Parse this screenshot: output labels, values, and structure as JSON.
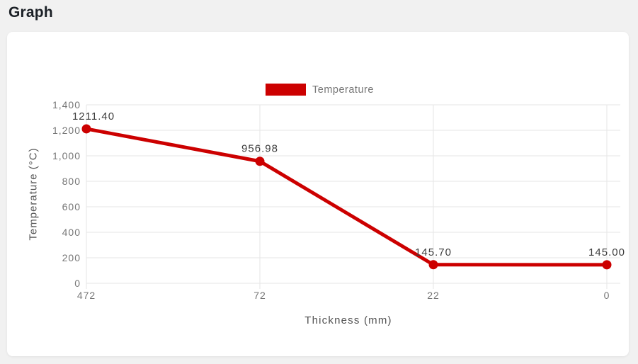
{
  "page": {
    "title": "Graph"
  },
  "legend": {
    "label": "Temperature"
  },
  "chart_data": {
    "type": "line",
    "title": "",
    "xlabel": "Thickness (mm)",
    "ylabel": "Temperature (°C)",
    "categories": [
      "472",
      "72",
      "22",
      "0"
    ],
    "x_values": [
      472,
      72,
      22,
      0
    ],
    "series": [
      {
        "name": "Temperature",
        "color": "#cc0000",
        "values": [
          1211.4,
          956.98,
          145.7,
          145.0
        ],
        "point_labels": [
          "1211.40",
          "956.98",
          "145.70",
          "145.00"
        ]
      }
    ],
    "ylim": [
      0,
      1400
    ],
    "yticks": [
      0,
      200,
      400,
      600,
      800,
      1000,
      1200,
      1400
    ],
    "ytick_labels": [
      "0",
      "200",
      "400",
      "600",
      "800",
      "1,000",
      "1,200",
      "1,400"
    ],
    "grid": true,
    "gridline_color": "#e6e6e6",
    "legend_position": "top"
  }
}
